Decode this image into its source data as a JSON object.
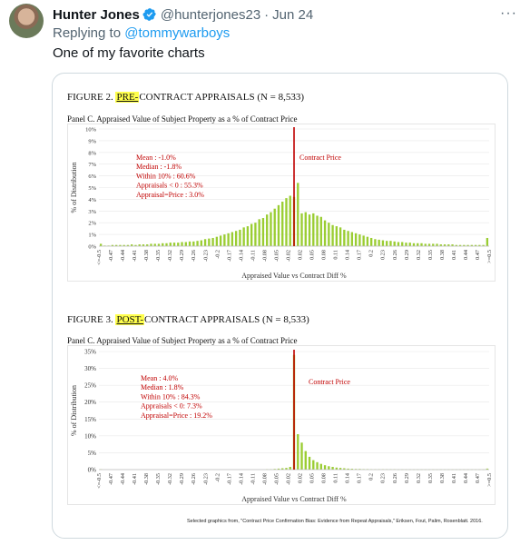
{
  "tweet": {
    "display_name": "Hunter Jones",
    "handle": "@hunterjones23",
    "separator": "·",
    "date": "Jun 24",
    "more_icon": "more-icon",
    "verified_color": "#1d9bf0",
    "reply_prefix": "Replying to",
    "reply_to": "@tommywarboys",
    "text": "One of my favorite charts"
  },
  "figures": {
    "fig2": {
      "title_prefix": "FIGURE 2. ",
      "title_highlight": "PRE-",
      "title_rest": "CONTRACT APPRAISALS (N = 8,533)",
      "panel_title": "Panel C. Appraised Value of Subject Property as a % of Contract Price"
    },
    "fig3": {
      "title_prefix": "FIGURE 3. ",
      "title_highlight": "POST-",
      "title_rest": "CONTRACT APPRAISALS (N = 8,533)",
      "panel_title": "Panel C. Appraised Value of Subject Property as a % of Contract Price"
    }
  },
  "citation": "Selected graphics from, \"Contract Price Confirmation Bias: Evidence from Repeat Appraisals,\" Eriksen, Fout, Palim, Rosenblatt. 2016.",
  "chart_data": [
    {
      "type": "bar",
      "title": "",
      "xlabel": "Appraised Value vs Contract Diff %",
      "ylabel": "% of Distribution",
      "ylim": [
        0,
        10
      ],
      "y_ticks": [
        "0%",
        "1%",
        "2%",
        "3%",
        "4%",
        "5%",
        "6%",
        "7%",
        "8%",
        "9%",
        "10%"
      ],
      "x_tick_labels": [
        "<=-0.5",
        "-0.47",
        "-0.44",
        "-0.41",
        "-0.38",
        "-0.35",
        "-0.32",
        "-0.29",
        "-0.26",
        "-0.23",
        "-0.2",
        "-0.17",
        "-0.14",
        "-0.11",
        "-0.08",
        "-0.05",
        "-0.02",
        "0.02",
        "0.05",
        "0.08",
        "0.11",
        "0.14",
        "0.17",
        "0.2",
        "0.23",
        "0.26",
        "0.29",
        "0.32",
        "0.35",
        "0.38",
        "0.41",
        "0.44",
        "0.47",
        ">=0.5"
      ],
      "bar_color": "#9acd32",
      "reference_line": {
        "x_index": 50,
        "label": "Contract Price",
        "color": "#c00000"
      },
      "stats_color": "#c00000",
      "stats": [
        "Mean : -1.0%",
        "Median : -1.8%",
        "Within 10% : 60.6%",
        "Appraisals < 0 : 55.3%",
        "Appraisal=Price : 3.0%"
      ],
      "values": [
        0.2,
        0.05,
        0.05,
        0.1,
        0.1,
        0.1,
        0.1,
        0.1,
        0.15,
        0.1,
        0.15,
        0.15,
        0.15,
        0.2,
        0.2,
        0.2,
        0.25,
        0.25,
        0.3,
        0.3,
        0.3,
        0.35,
        0.35,
        0.4,
        0.4,
        0.45,
        0.5,
        0.6,
        0.65,
        0.7,
        0.8,
        0.9,
        1.0,
        1.1,
        1.2,
        1.3,
        1.4,
        1.6,
        1.7,
        1.9,
        2.0,
        2.3,
        2.4,
        2.7,
        2.9,
        3.2,
        3.5,
        3.8,
        4.1,
        4.3,
        4.2,
        5.4,
        2.8,
        2.9,
        2.7,
        2.8,
        2.6,
        2.5,
        2.2,
        2.0,
        1.8,
        1.7,
        1.6,
        1.4,
        1.3,
        1.2,
        1.1,
        1.0,
        0.9,
        0.8,
        0.7,
        0.6,
        0.55,
        0.5,
        0.45,
        0.45,
        0.4,
        0.35,
        0.35,
        0.3,
        0.3,
        0.25,
        0.25,
        0.25,
        0.2,
        0.2,
        0.2,
        0.2,
        0.15,
        0.15,
        0.15,
        0.15,
        0.1,
        0.1,
        0.1,
        0.1,
        0.1,
        0.1,
        0.1,
        0.1,
        0.7
      ]
    },
    {
      "type": "bar",
      "title": "",
      "xlabel": "Appraised Value vs Contract Diff %",
      "ylabel": "% of Distribution",
      "ylim": [
        0,
        35
      ],
      "y_ticks": [
        "0%",
        "5%",
        "10%",
        "15%",
        "20%",
        "25%",
        "30%",
        "35%"
      ],
      "x_tick_labels": [
        "<=-0.5",
        "-0.47",
        "-0.44",
        "-0.41",
        "-0.38",
        "-0.35",
        "-0.32",
        "-0.29",
        "-0.26",
        "-0.23",
        "-0.2",
        "-0.17",
        "-0.14",
        "-0.11",
        "-0.08",
        "-0.05",
        "-0.02",
        "0.02",
        "0.05",
        "0.08",
        "0.11",
        "0.14",
        "0.17",
        "0.2",
        "0.23",
        "0.26",
        "0.29",
        "0.32",
        "0.35",
        "0.38",
        "0.41",
        "0.44",
        "0.47",
        ">=0.5"
      ],
      "bar_color": "#9acd32",
      "reference_line": {
        "x_index": 50,
        "label": "Contract Price",
        "color": "#c00000"
      },
      "stats_color": "#c00000",
      "stats": [
        "Mean : 4.0%",
        "Median : 1.8%",
        "Within 10% : 84.3%",
        "Appraisals < 0: 7.3%",
        "Appraisal=Price : 19.2%"
      ],
      "values": [
        0.1,
        0,
        0,
        0,
        0,
        0,
        0,
        0,
        0,
        0,
        0,
        0,
        0,
        0,
        0,
        0,
        0,
        0,
        0,
        0,
        0,
        0,
        0,
        0,
        0,
        0,
        0,
        0,
        0,
        0,
        0,
        0,
        0,
        0,
        0,
        0,
        0,
        0,
        0,
        0,
        0,
        0,
        0,
        0.1,
        0.1,
        0.2,
        0.3,
        0.4,
        0.5,
        0.8,
        34.0,
        10.5,
        8.0,
        5.5,
        3.8,
        2.8,
        2.2,
        1.7,
        1.3,
        1.0,
        0.8,
        0.6,
        0.5,
        0.4,
        0.3,
        0.25,
        0.2,
        0.2,
        0.15,
        0.15,
        0.1,
        0.1,
        0.1,
        0.1,
        0.1,
        0.1,
        0.1,
        0.05,
        0.05,
        0.05,
        0.05,
        0.05,
        0.05,
        0.05,
        0.05,
        0.05,
        0.05,
        0.05,
        0.05,
        0.05,
        0.05,
        0.05,
        0.05,
        0.05,
        0.05,
        0.05,
        0.05,
        0.05,
        0.05,
        0.05,
        0.3
      ]
    }
  ]
}
